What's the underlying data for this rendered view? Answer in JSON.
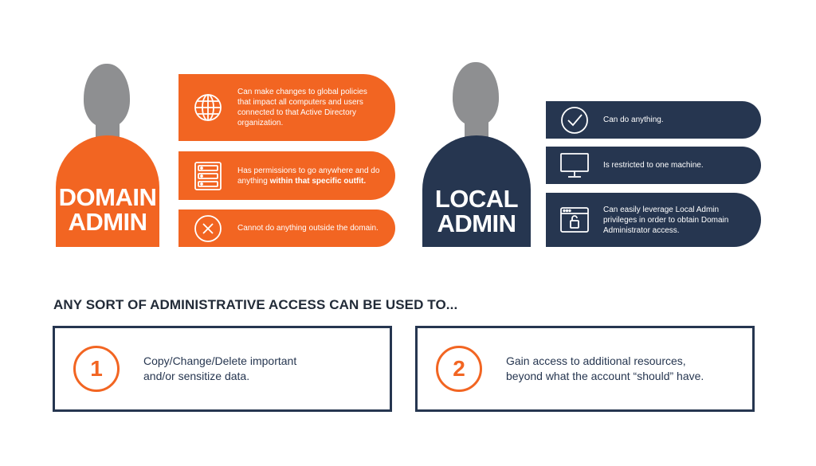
{
  "domain_admin": {
    "label_line1": "DOMAIN",
    "label_line2": "ADMIN",
    "items": [
      {
        "icon": "globe-icon",
        "text": "Can make changes to global policies that impact all computers and users connected to that Active Directory organization."
      },
      {
        "icon": "server-icon",
        "text_plain": "Has permissions to go anywhere and do anything ",
        "text_bold": "within that specific outfit."
      },
      {
        "icon": "x-circle-icon",
        "text": "Cannot do anything outside the domain."
      }
    ]
  },
  "local_admin": {
    "label_line1": "LOCAL",
    "label_line2": "ADMIN",
    "items": [
      {
        "icon": "check-circle-icon",
        "text": "Can do anything."
      },
      {
        "icon": "monitor-icon",
        "text": "Is restricted to one machine."
      },
      {
        "icon": "browser-lock-icon",
        "text": "Can easily leverage Local Admin privileges in order to obtain Domain Administrator access."
      }
    ]
  },
  "headline": "ANY SORT OF ADMINISTRATIVE ACCESS CAN BE USED TO...",
  "uses": [
    {
      "number": "1",
      "line1": "Copy/Change/Delete important",
      "line2": "and/or sensitize data."
    },
    {
      "number": "2",
      "line1": "Gain access to additional resources,",
      "line2": "beyond what the account “should” have."
    }
  ],
  "colors": {
    "orange": "#f26522",
    "navy": "#263650",
    "gray": "#8e8f91"
  }
}
